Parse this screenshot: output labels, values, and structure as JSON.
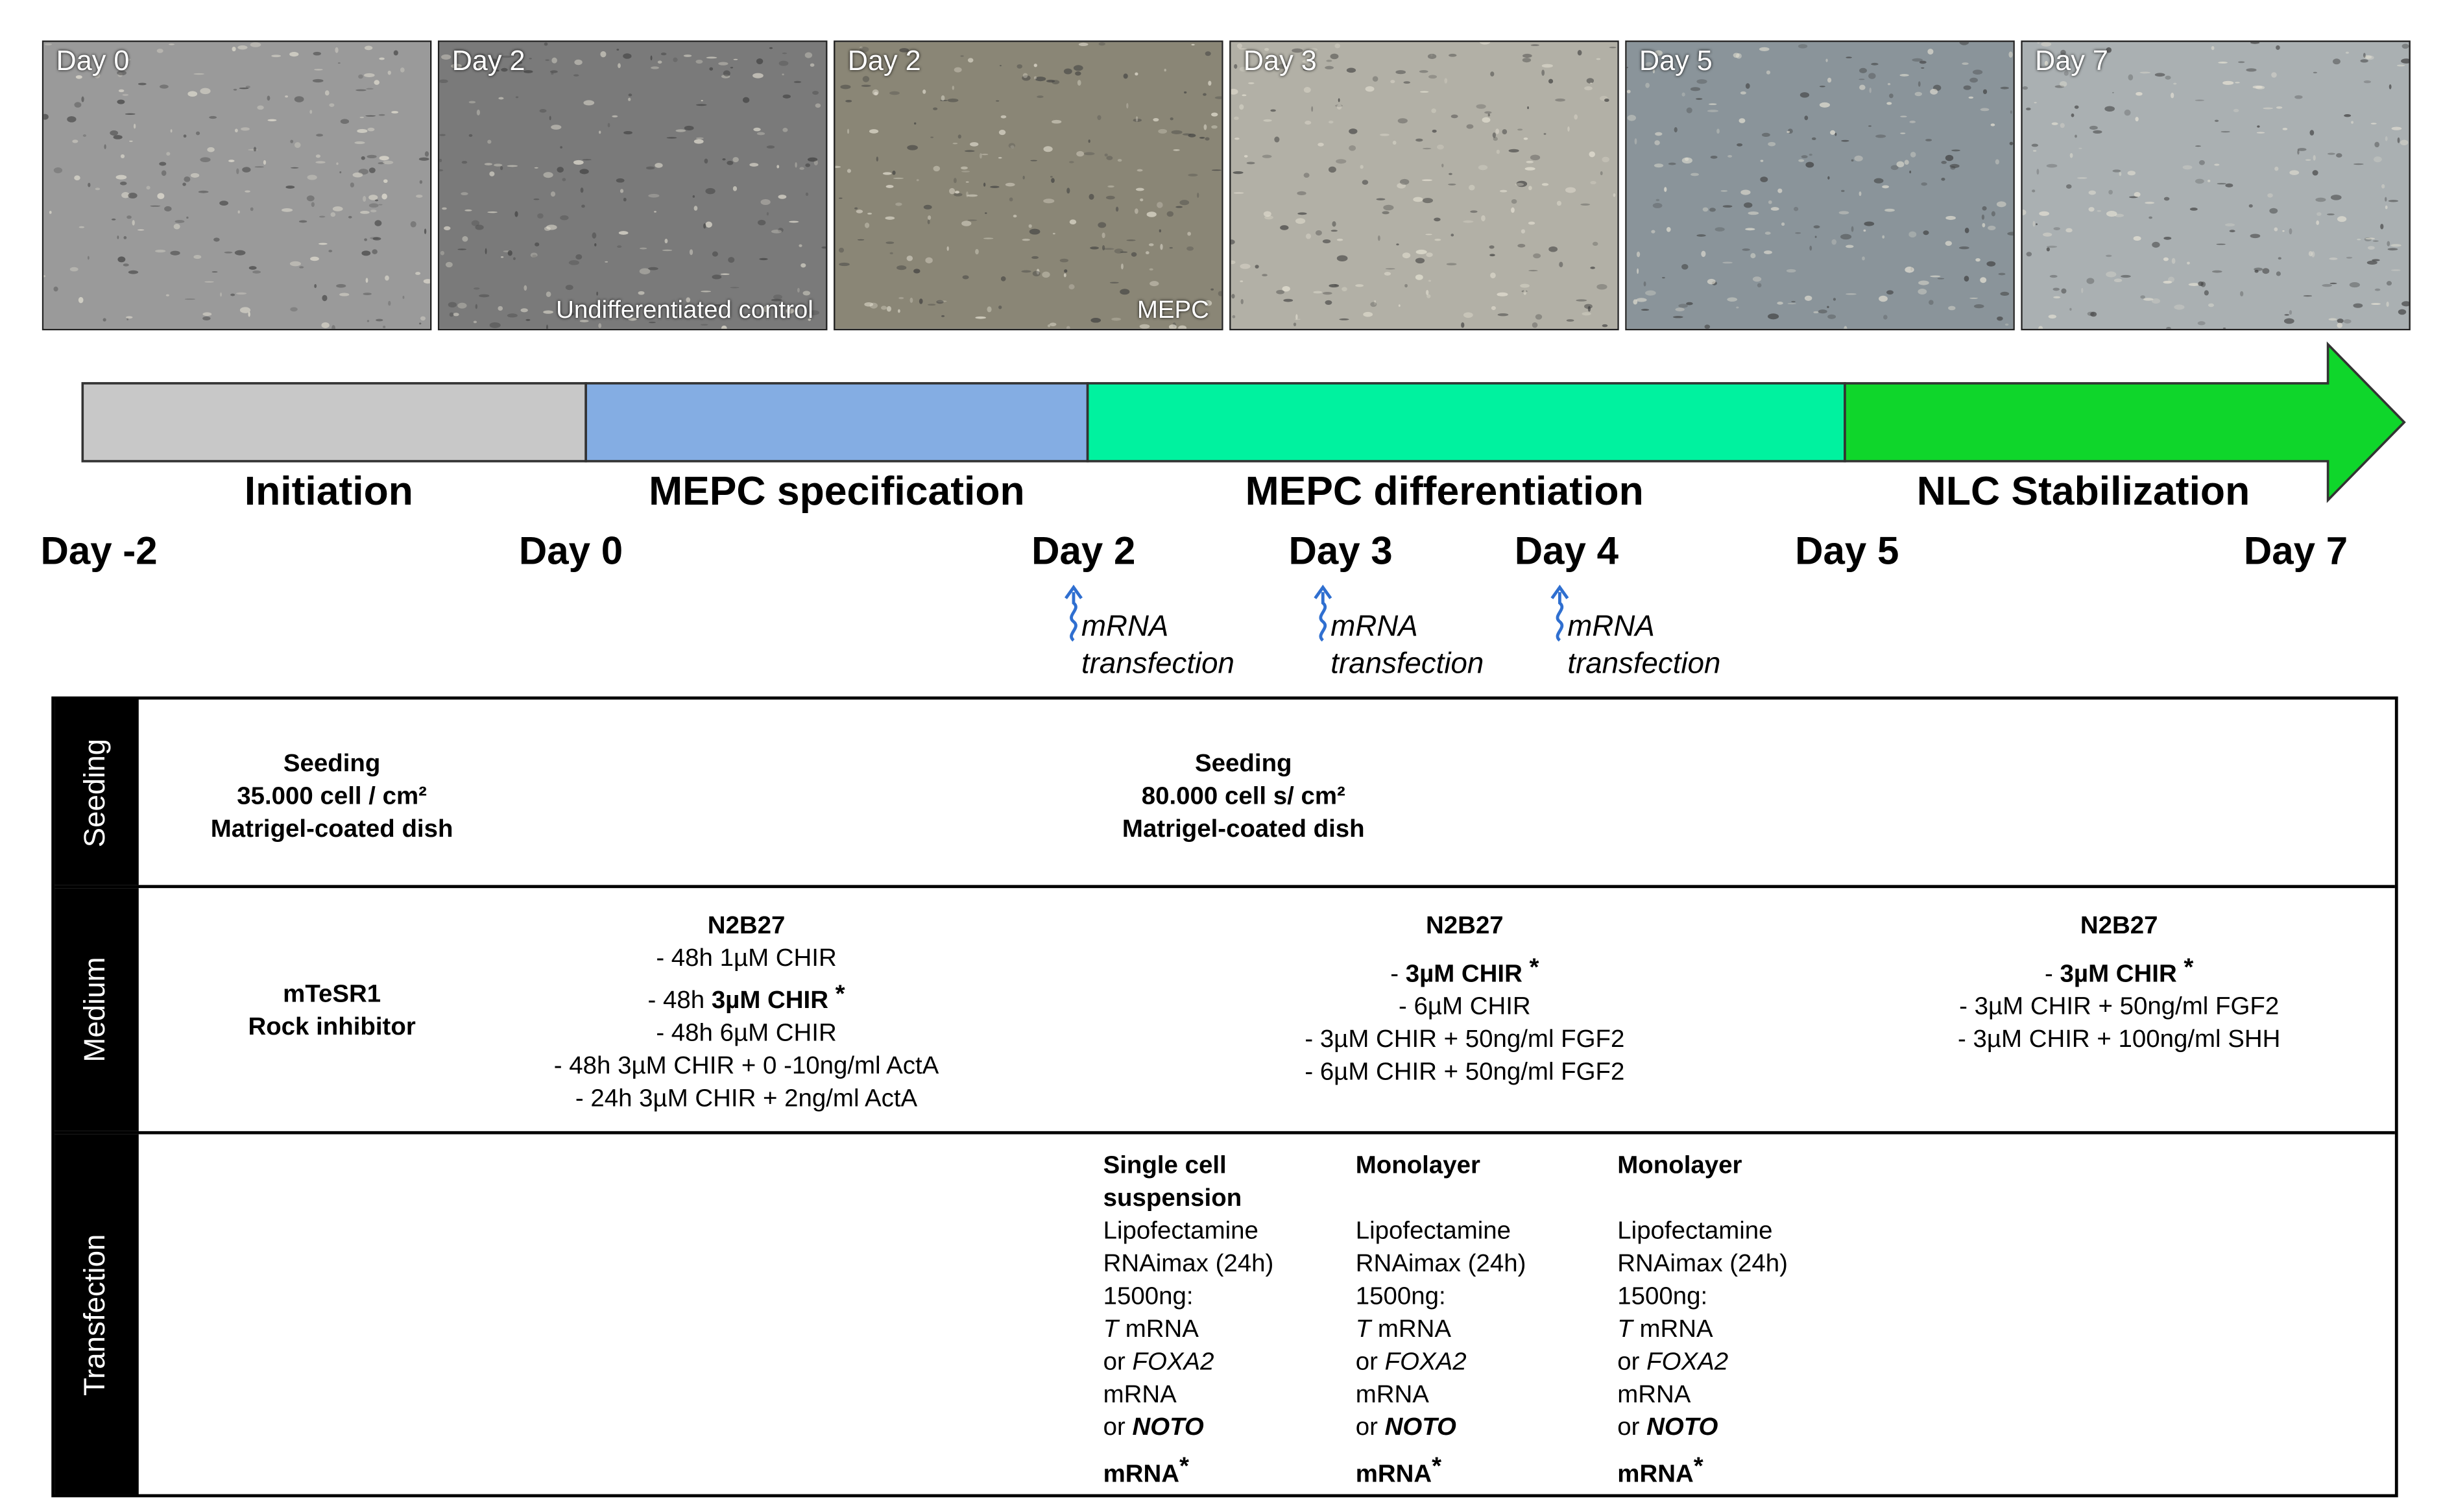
{
  "micrographs": [
    {
      "day": "Day 0",
      "caption": ""
    },
    {
      "day": "Day 2",
      "caption": "Undifferentiated control"
    },
    {
      "day": "Day 2",
      "caption": "MEPC"
    },
    {
      "day": "Day 3",
      "caption": ""
    },
    {
      "day": "Day 5",
      "caption": ""
    },
    {
      "day": "Day 7",
      "caption": ""
    }
  ],
  "phases": [
    {
      "label": "Initiation",
      "color": "#c8c8c8"
    },
    {
      "label": "MEPC specification",
      "color": "#84ade3"
    },
    {
      "label": "MEPC differentiation",
      "color": "#00f29f"
    },
    {
      "label": "NLC Stabilization",
      "color": "#0fd62b"
    }
  ],
  "days": [
    "Day -2",
    "Day 0",
    "Day 2",
    "Day 3",
    "Day 4",
    "Day 5",
    "Day 7"
  ],
  "transfection_markers": [
    {
      "line1": "mRNA",
      "line2": "transfection"
    },
    {
      "line1": "mRNA",
      "line2": "transfection"
    },
    {
      "line1": "mRNA",
      "line2": "transfection"
    }
  ],
  "table": {
    "seeding": {
      "header": "Seeding",
      "initiation": [
        "Seeding",
        "35.000 cell / cm²",
        "Matrigel-coated dish"
      ],
      "main": [
        "Seeding",
        "80.000 cell s/ cm²",
        "Matrigel-coated dish"
      ]
    },
    "medium": {
      "header": "Medium",
      "initiation": [
        "mTeSR1",
        "Rock inhibitor"
      ],
      "specification": {
        "title": "N2B27",
        "lines": [
          "- 48h 1µM CHIR",
          "- 48h ",
          "3µM CHIR",
          " *",
          "- 48h 6µM CHIR",
          "- 48h 3µM CHIR + 0 -10ng/ml ActA",
          "- 24h 3µM CHIR + 2ng/ml ActA"
        ]
      },
      "differentiation": {
        "title": "N2B27",
        "lines": [
          "- ",
          "3µM CHIR",
          " *",
          "- 6µM CHIR",
          "- 3µM CHIR + 50ng/ml FGF2",
          "- 6µM CHIR + 50ng/ml FGF2"
        ]
      },
      "stabilization": {
        "title": "N2B27",
        "lines": [
          "- ",
          "3µM CHIR",
          " *",
          "- 3µM CHIR + 50ng/ml FGF2",
          "- 3µM CHIR + 100ng/ml SHH"
        ]
      }
    },
    "transfection": {
      "header": "Transfection",
      "columns": [
        {
          "title1": "Single cell",
          "title2": "suspension",
          "reagent1": "Lipofectamine",
          "reagent2": "RNAimax (24h)",
          "amount": "1500ng:",
          "t_gene": "T",
          "t_rest": " mRNA",
          "or1": "or ",
          "foxa2": "FOXA2",
          "mrna1": "mRNA",
          "or2": "or ",
          "noto": "NOTO",
          "mrna2": "mRNA",
          "star": "*"
        },
        {
          "title1": "Monolayer",
          "title2": "",
          "reagent1": "Lipofectamine",
          "reagent2": "RNAimax (24h)",
          "amount": "1500ng:",
          "t_gene": "T",
          "t_rest": " mRNA",
          "or1": "or ",
          "foxa2": "FOXA2",
          "mrna1": "mRNA",
          "or2": "or ",
          "noto": "NOTO",
          "mrna2": "mRNA",
          "star": "*"
        },
        {
          "title1": "Monolayer",
          "title2": "",
          "reagent1": "Lipofectamine",
          "reagent2": "RNAimax (24h)",
          "amount": "1500ng:",
          "t_gene": "T",
          "t_rest": " mRNA",
          "or1": "or ",
          "foxa2": "FOXA2",
          "mrna1": "mRNA",
          "or2": "or ",
          "noto": "NOTO",
          "mrna2": "mRNA",
          "star": "*"
        }
      ]
    }
  },
  "colors": {
    "micro_tones": [
      "#9a9a9a",
      "#7a7a7a",
      "#8a8676",
      "#b2b0a6",
      "#8a949a",
      "#aab0b2"
    ],
    "arrow_blue": "#2f6fd0"
  }
}
